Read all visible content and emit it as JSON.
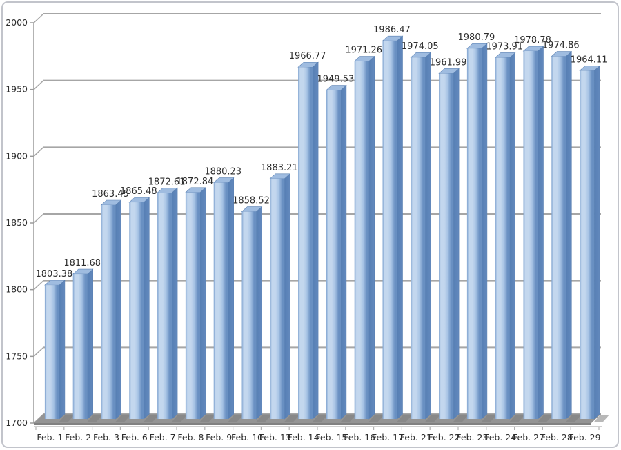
{
  "chart_data": {
    "type": "bar",
    "title": "",
    "xlabel": "",
    "ylabel": "",
    "categories": [
      "Feb. 1",
      "Feb. 2",
      "Feb. 3",
      "Feb. 6",
      "Feb. 7",
      "Feb. 8",
      "Feb. 9",
      "Feb. 10",
      "Feb. 13",
      "Feb. 14",
      "Feb. 15",
      "Feb. 16",
      "Feb. 17",
      "Feb. 21",
      "Feb. 22",
      "Feb. 23",
      "Feb. 24",
      "Feb. 27",
      "Feb. 28",
      "Feb. 29"
    ],
    "values": [
      1803.38,
      1811.68,
      1863.45,
      1865.48,
      1872.61,
      1872.84,
      1880.23,
      1858.52,
      1883.21,
      1966.77,
      1949.53,
      1971.26,
      1986.47,
      1974.05,
      1961.99,
      1980.79,
      1973.91,
      1978.78,
      1974.86,
      1964.11
    ],
    "value_labels": [
      "1803.38",
      "1811.68",
      "1863.45",
      "1865.48",
      "1872.61",
      "1872.84",
      "1880.23",
      "1858.52",
      "1883.21",
      "1966.77",
      "1949.53",
      "1971.26",
      "1986.47",
      "1974.05",
      "1961.99",
      "1980.79",
      "1973.91",
      "1978.78",
      "1974.86",
      "1964.11"
    ],
    "yticks": [
      2000,
      1950,
      1900,
      1850,
      1800,
      1750,
      1700
    ],
    "ylim": [
      1700,
      2000
    ],
    "grid": true,
    "legend": false,
    "style_3d": true,
    "data_labels_shown": true,
    "colors": {
      "bar_edge_left": "#7fa3d0",
      "bar_highlight": "#c3d7ee",
      "bar_mid": "#a8c4e5",
      "bar_shade": "#6990c2",
      "bar_side_dark": "#567fb4",
      "bar_side_light": "#6389bd",
      "bar_top": "#9fbce0",
      "bar_outline": "#5a80b2",
      "gridline": "#a6a6a6",
      "axis_line": "#9a9a9a",
      "floor_top": "#949494",
      "floor_front": "#818181",
      "shadow": "#7d7d7d",
      "tick_line": "#b3b3b3",
      "text": "#2e2e2e",
      "frame_border": "#c2c4cb",
      "background": "#ffffff"
    }
  }
}
